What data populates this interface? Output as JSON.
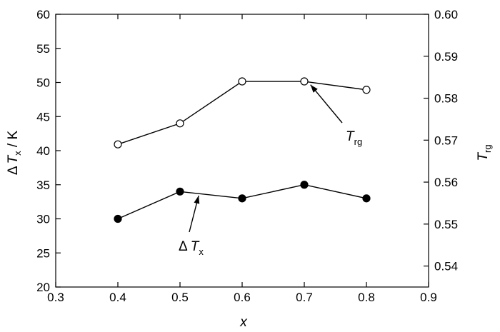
{
  "chart_data": {
    "type": "line",
    "x_axis": {
      "label": "x",
      "range": [
        0.3,
        0.9
      ],
      "ticks": [
        0.3,
        0.4,
        0.5,
        0.6,
        0.7,
        0.8,
        0.9
      ],
      "tick_labels": [
        "0.3",
        "0.4",
        "0.5",
        "0.6",
        "0.7",
        "0.8",
        "0.9"
      ]
    },
    "y_axis_left": {
      "label_symbol": "Δ",
      "label_var": "T",
      "label_sub": "x",
      "label_unit": " / K",
      "range": [
        20,
        60
      ],
      "ticks": [
        20,
        25,
        30,
        35,
        40,
        45,
        50,
        55,
        60
      ],
      "tick_labels": [
        "20",
        "25",
        "30",
        "35",
        "40",
        "45",
        "50",
        "55",
        "60"
      ]
    },
    "y_axis_right": {
      "label_var": "T",
      "label_sub": "rg",
      "range": [
        0.535,
        0.6
      ],
      "ticks": [
        0.54,
        0.55,
        0.56,
        0.57,
        0.58,
        0.59,
        0.6
      ],
      "tick_labels": [
        "0.54",
        "0.55",
        "0.56",
        "0.57",
        "0.58",
        "0.59",
        "0.60"
      ]
    },
    "grid": false,
    "series": [
      {
        "marker": "open-circle",
        "axis": "right",
        "x": [
          0.4,
          0.5,
          0.6,
          0.7,
          0.8
        ],
        "y": [
          0.569,
          0.574,
          0.584,
          0.584,
          0.582
        ]
      },
      {
        "marker": "filled-circle",
        "axis": "left",
        "x": [
          0.4,
          0.5,
          0.6,
          0.7,
          0.8
        ],
        "y": [
          30,
          34,
          33,
          35,
          33
        ]
      }
    ],
    "annotations": [
      {
        "var": "T",
        "sub": "rg",
        "points_to_x": 0.71,
        "points_to_y_right": 0.5832
      },
      {
        "symbol": "Δ",
        "var": "T",
        "sub": "x",
        "points_to_x": 0.53,
        "points_to_y_left": 33.4
      }
    ]
  }
}
